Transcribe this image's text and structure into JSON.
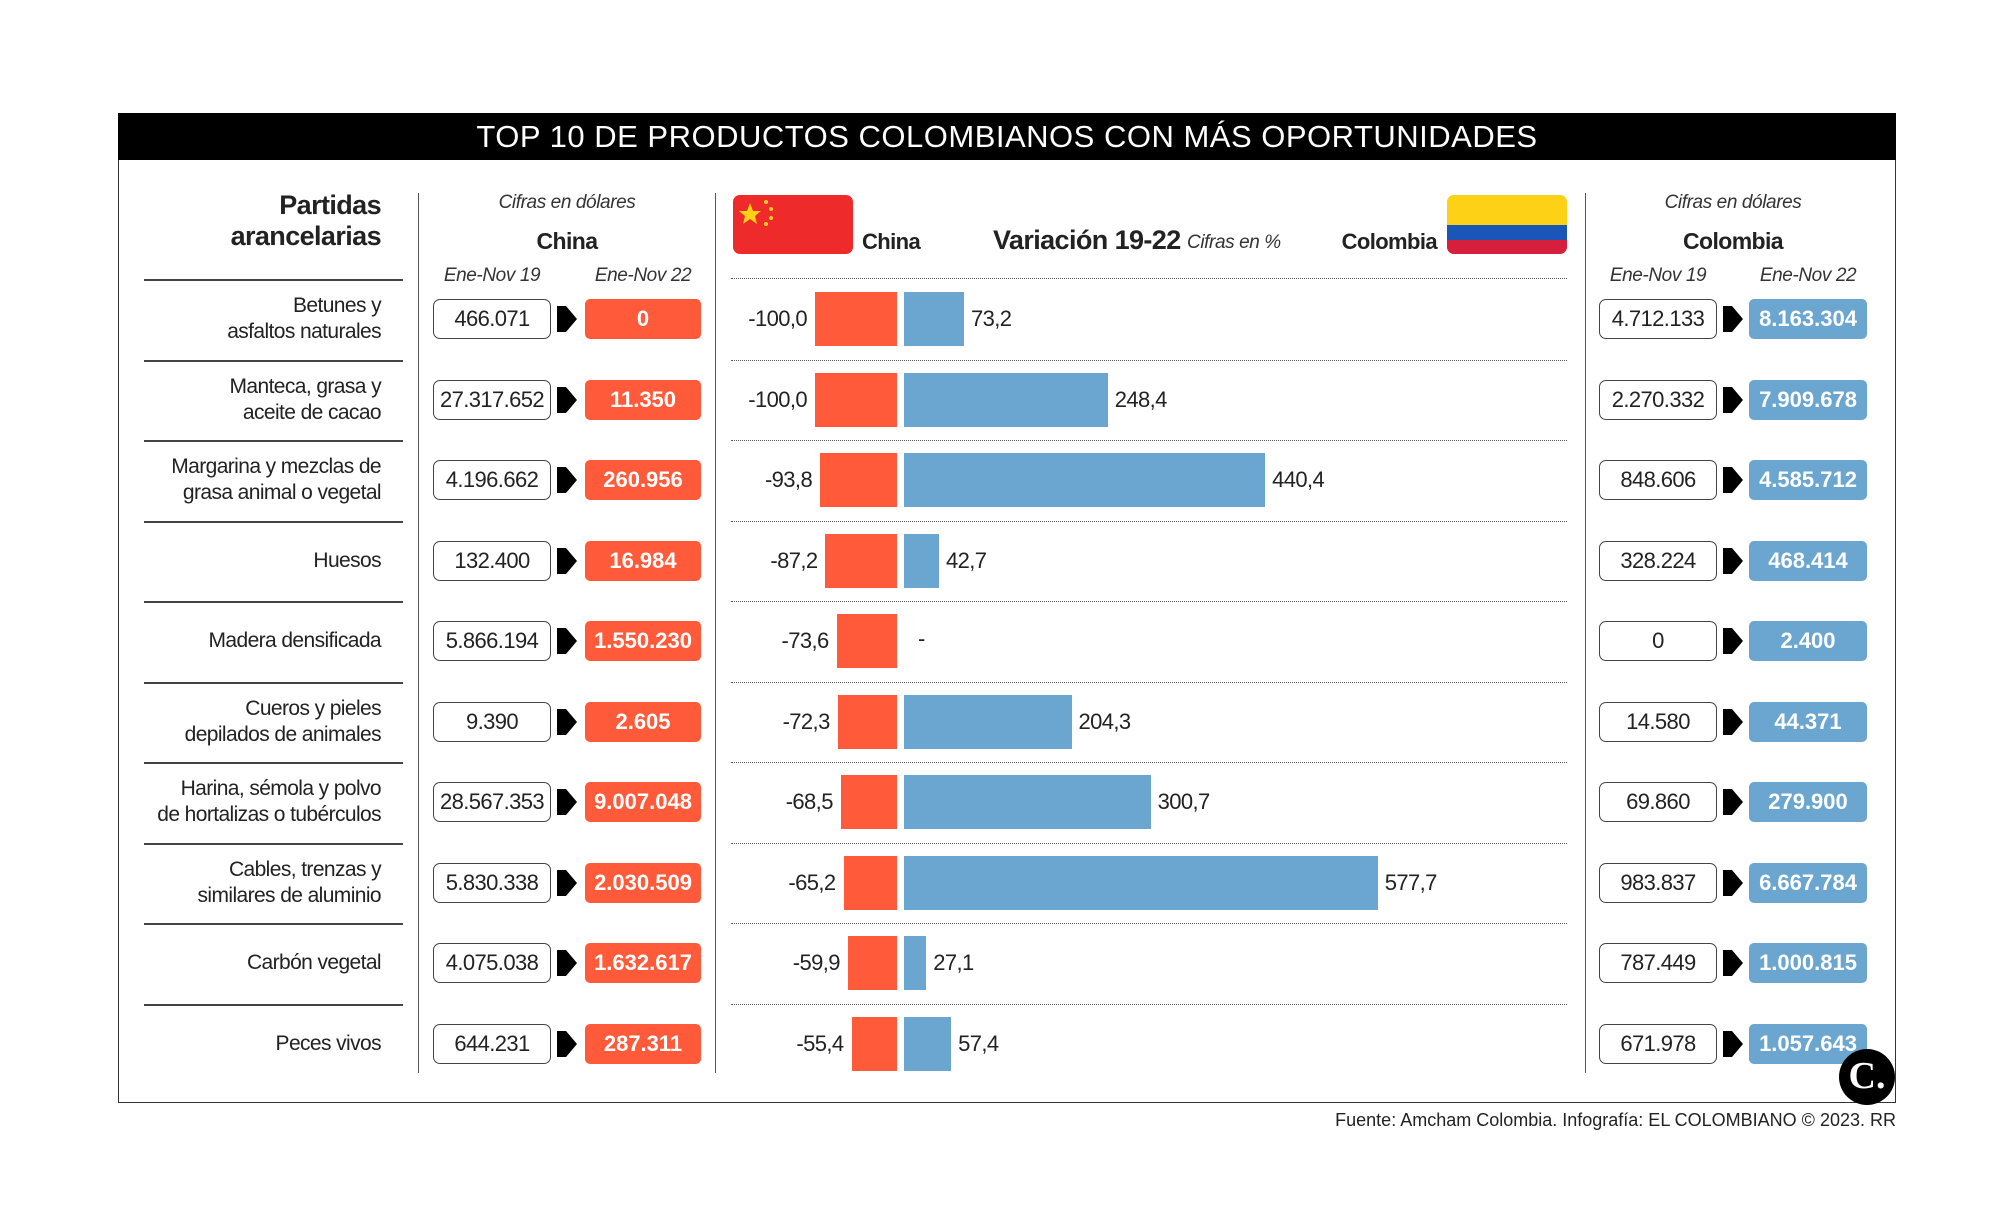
{
  "title": "TOP 10 DE PRODUCTOS COLOMBIANOS CON MÁS OPORTUNIDADES",
  "left_header": {
    "line1": "Partidas",
    "line2": "arancelarias"
  },
  "china_table": {
    "note": "Cifras en dólares",
    "country": "China",
    "col1": "Ene-Nov 19",
    "col2": "Ene-Nov 22"
  },
  "colombia_table": {
    "note": "Cifras en dólares",
    "country": "Colombia",
    "col1": "Ene-Nov 19",
    "col2": "Ene-Nov 22"
  },
  "variation": {
    "title": "Variación 19-22",
    "unit": "Cifras en %",
    "china_label": "China",
    "colombia_label": "Colombia"
  },
  "colors": {
    "china": "#ff5a3a",
    "colombia": "#6aa6cf",
    "flag_red": "#ee2a2a",
    "flag_yellow": "#fcd116",
    "flag_blue": "#1a55b8",
    "flag_red_co": "#d61f3c"
  },
  "chart_data": {
    "type": "bar",
    "title": "Variación 19-22",
    "unit": "%",
    "categories": [
      [
        "Betunes y",
        "asfaltos naturales"
      ],
      [
        "Manteca, grasa y",
        "aceite de cacao"
      ],
      [
        "Margarina y mezclas de",
        "grasa animal o vegetal"
      ],
      [
        "Huesos"
      ],
      [
        "Madera densificada"
      ],
      [
        "Cueros y pieles",
        "depilados de animales"
      ],
      [
        "Harina, sémola y polvo",
        "de hortalizas o tubérculos"
      ],
      [
        "Cables, trenzas y",
        "similares de aluminio"
      ],
      [
        "Carbón vegetal"
      ],
      [
        "Peces vivos"
      ]
    ],
    "series": [
      {
        "name": "China",
        "values": [
          -100.0,
          -100.0,
          -93.8,
          -87.2,
          -73.6,
          -72.3,
          -68.5,
          -65.2,
          -59.9,
          -55.4
        ],
        "labels": [
          "-100,0",
          "-100,0",
          "-93,8",
          "-87,2",
          "-73,6",
          "-72,3",
          "-68,5",
          "-65,2",
          "-59,9",
          "-55,4"
        ]
      },
      {
        "name": "Colombia",
        "values": [
          73.2,
          248.4,
          440.4,
          42.7,
          null,
          204.3,
          300.7,
          577.7,
          27.1,
          57.4
        ],
        "labels": [
          "73,2",
          "248,4",
          "440,4",
          "42,7",
          "-",
          "204,3",
          "300,7",
          "577,7",
          "27,1",
          "57,4"
        ]
      }
    ],
    "china_usd": {
      "ene_nov_19": [
        "466.071",
        "27.317.652",
        "4.196.662",
        "132.400",
        "5.866.194",
        "9.390",
        "28.567.353",
        "5.830.338",
        "4.075.038",
        "644.231"
      ],
      "ene_nov_22": [
        "0",
        "11.350",
        "260.956",
        "16.984",
        "1.550.230",
        "2.605",
        "9.007.048",
        "2.030.509",
        "1.632.617",
        "287.311"
      ]
    },
    "colombia_usd": {
      "ene_nov_19": [
        "4.712.133",
        "2.270.332",
        "848.606",
        "328.224",
        "0",
        "14.580",
        "69.860",
        "983.837",
        "787.449",
        "671.978"
      ],
      "ene_nov_22": [
        "8.163.304",
        "7.909.678",
        "4.585.712",
        "468.414",
        "2.400",
        "44.371",
        "279.900",
        "6.667.784",
        "1.000.815",
        "1.057.643"
      ]
    }
  },
  "footer": "Fuente: Amcham Colombia. Infografía: EL COLOMBIANO © 2023. RR",
  "logo_text": "C."
}
